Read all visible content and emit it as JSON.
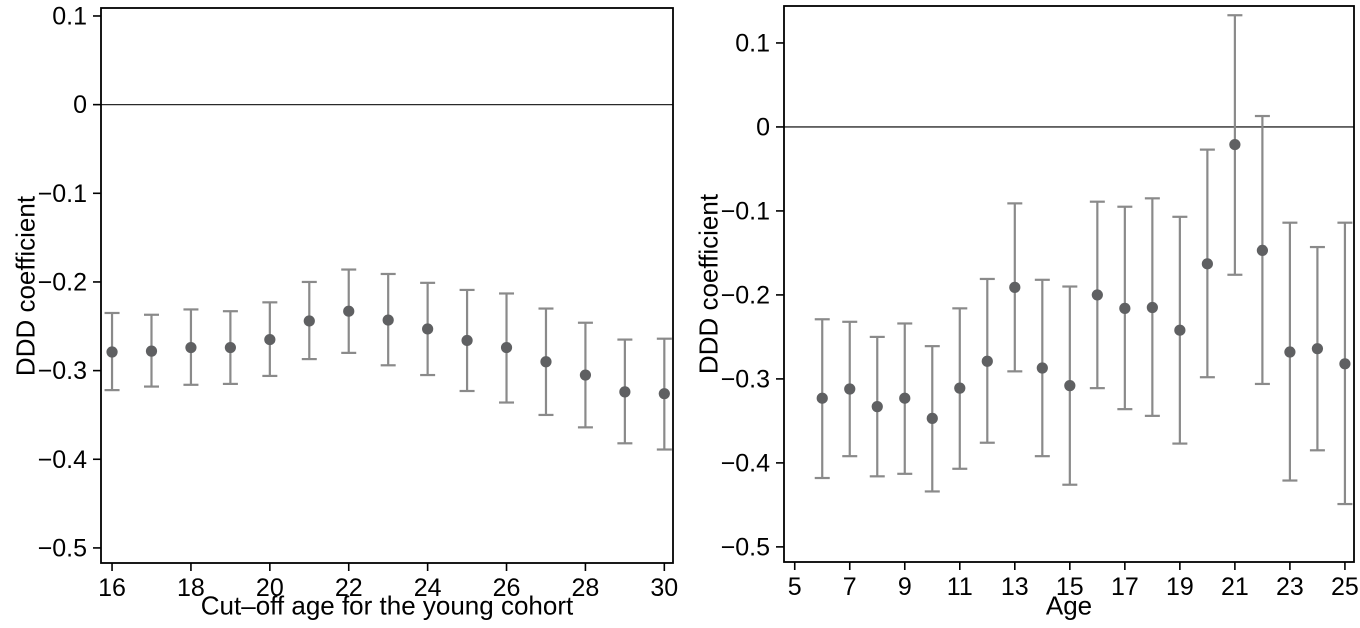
{
  "page": {
    "background": "#ffffff"
  },
  "colors": {
    "marker": "#5f6062",
    "whisker": "#8a8a8a",
    "axis": "#000000",
    "zero_line": "#2a2a2a",
    "text": "#000000"
  },
  "chart_data": [
    {
      "type": "scatter",
      "name": "cutoff-age-robustness-panel",
      "xlabel": "Cut–off age for the young cohort",
      "ylabel": "DDD coefficient",
      "grid": false,
      "legend": "none",
      "error_bars": true,
      "zero_reference_line": 0,
      "xlim": [
        15.72,
        30.22
      ],
      "ylim": [
        -0.517,
        0.109
      ],
      "xticks": [
        16,
        18,
        20,
        22,
        24,
        26,
        28,
        30
      ],
      "yticks": [
        0.1,
        0,
        -0.1,
        -0.2,
        -0.3,
        -0.4,
        -0.5
      ],
      "x": [
        16,
        17,
        18,
        19,
        20,
        21,
        22,
        23,
        24,
        25,
        26,
        27,
        28,
        29,
        30
      ],
      "series": [
        {
          "name": "DDD coefficient estimate",
          "values": [
            -0.279,
            -0.278,
            -0.274,
            -0.274,
            -0.265,
            -0.244,
            -0.233,
            -0.243,
            -0.253,
            -0.266,
            -0.274,
            -0.29,
            -0.305,
            -0.324,
            -0.326
          ]
        },
        {
          "name": "CI lower bound",
          "values": [
            -0.322,
            -0.318,
            -0.316,
            -0.315,
            -0.306,
            -0.287,
            -0.28,
            -0.294,
            -0.305,
            -0.323,
            -0.336,
            -0.35,
            -0.364,
            -0.382,
            -0.389
          ]
        },
        {
          "name": "CI upper bound",
          "values": [
            -0.235,
            -0.237,
            -0.231,
            -0.233,
            -0.223,
            -0.2,
            -0.186,
            -0.191,
            -0.201,
            -0.209,
            -0.213,
            -0.23,
            -0.246,
            -0.265,
            -0.264
          ]
        }
      ]
    },
    {
      "type": "scatter",
      "name": "effect-by-age-panel",
      "xlabel": "Age",
      "ylabel": "DDD coefficient",
      "grid": false,
      "legend": "none",
      "error_bars": true,
      "zero_reference_line": 0,
      "xlim": [
        4.61,
        25.33
      ],
      "ylim": [
        -0.518,
        0.144
      ],
      "xticks": [
        5,
        7,
        9,
        11,
        13,
        15,
        17,
        19,
        21,
        23,
        25
      ],
      "yticks": [
        0.1,
        0,
        -0.1,
        -0.2,
        -0.3,
        -0.4,
        -0.5
      ],
      "x": [
        6,
        7,
        8,
        9,
        10,
        11,
        12,
        13,
        14,
        15,
        16,
        17,
        18,
        19,
        20,
        21,
        22,
        23,
        24,
        25
      ],
      "series": [
        {
          "name": "DDD coefficient estimate",
          "values": [
            -0.323,
            -0.312,
            -0.333,
            -0.323,
            -0.347,
            -0.311,
            -0.279,
            -0.191,
            -0.287,
            -0.308,
            -0.2,
            -0.216,
            -0.215,
            -0.242,
            -0.163,
            -0.021,
            -0.147,
            -0.268,
            -0.264,
            -0.282
          ]
        },
        {
          "name": "CI lower bound",
          "values": [
            -0.418,
            -0.392,
            -0.416,
            -0.413,
            -0.434,
            -0.407,
            -0.376,
            -0.291,
            -0.392,
            -0.426,
            -0.311,
            -0.336,
            -0.344,
            -0.377,
            -0.298,
            -0.176,
            -0.306,
            -0.421,
            -0.385,
            -0.449
          ]
        },
        {
          "name": "CI upper bound",
          "values": [
            -0.229,
            -0.232,
            -0.25,
            -0.234,
            -0.261,
            -0.216,
            -0.181,
            -0.091,
            -0.182,
            -0.19,
            -0.089,
            -0.095,
            -0.085,
            -0.107,
            -0.027,
            0.133,
            0.013,
            -0.114,
            -0.143,
            -0.114
          ]
        }
      ]
    }
  ]
}
